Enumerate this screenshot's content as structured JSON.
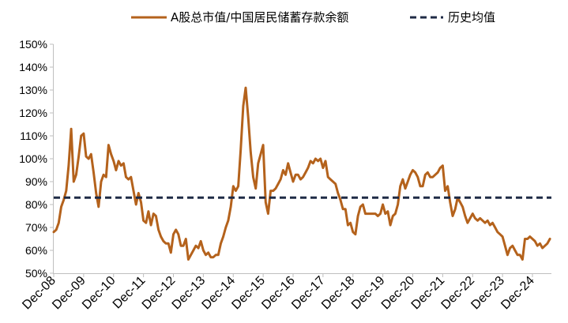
{
  "chart_data": {
    "type": "line",
    "legend": "top",
    "grid": false,
    "ylim": [
      50,
      150
    ],
    "yticks": [
      {
        "value": 50,
        "label": "50%"
      },
      {
        "value": 60,
        "label": "60%"
      },
      {
        "value": 70,
        "label": "70%"
      },
      {
        "value": 80,
        "label": "80%"
      },
      {
        "value": 90,
        "label": "90%"
      },
      {
        "value": 100,
        "label": "100%"
      },
      {
        "value": 110,
        "label": "110%"
      },
      {
        "value": 120,
        "label": "120%"
      },
      {
        "value": 130,
        "label": "130%"
      },
      {
        "value": 140,
        "label": "140%"
      },
      {
        "value": 150,
        "label": "150%"
      }
    ],
    "xticks": [
      {
        "date": "2008-12",
        "label": "Dec-08"
      },
      {
        "date": "2009-12",
        "label": "Dec-09"
      },
      {
        "date": "2010-12",
        "label": "Dec-10"
      },
      {
        "date": "2011-12",
        "label": "Dec-11"
      },
      {
        "date": "2012-12",
        "label": "Dec-12"
      },
      {
        "date": "2013-12",
        "label": "Dec-13"
      },
      {
        "date": "2014-12",
        "label": "Dec-14"
      },
      {
        "date": "2015-12",
        "label": "Dec-15"
      },
      {
        "date": "2016-12",
        "label": "Dec-16"
      },
      {
        "date": "2017-12",
        "label": "Dec-17"
      },
      {
        "date": "2018-12",
        "label": "Dec-18"
      },
      {
        "date": "2019-12",
        "label": "Dec-19"
      },
      {
        "date": "2020-12",
        "label": "Dec-20"
      },
      {
        "date": "2021-12",
        "label": "Dec-21"
      },
      {
        "date": "2022-12",
        "label": "Dec-22"
      },
      {
        "date": "2023-12",
        "label": "Dec-23"
      },
      {
        "date": "2024-12",
        "label": "Dec-24"
      }
    ],
    "x": [
      "2008-12",
      "2009-01",
      "2009-02",
      "2009-03",
      "2009-04",
      "2009-05",
      "2009-06",
      "2009-07",
      "2009-08",
      "2009-09",
      "2009-10",
      "2009-11",
      "2009-12",
      "2010-01",
      "2010-02",
      "2010-03",
      "2010-04",
      "2010-05",
      "2010-06",
      "2010-07",
      "2010-08",
      "2010-09",
      "2010-10",
      "2010-11",
      "2010-12",
      "2011-01",
      "2011-02",
      "2011-03",
      "2011-04",
      "2011-05",
      "2011-06",
      "2011-07",
      "2011-08",
      "2011-09",
      "2011-10",
      "2011-11",
      "2011-12",
      "2012-01",
      "2012-02",
      "2012-03",
      "2012-04",
      "2012-05",
      "2012-06",
      "2012-07",
      "2012-08",
      "2012-09",
      "2012-10",
      "2012-11",
      "2012-12",
      "2013-01",
      "2013-02",
      "2013-03",
      "2013-04",
      "2013-05",
      "2013-06",
      "2013-07",
      "2013-08",
      "2013-09",
      "2013-10",
      "2013-11",
      "2013-12",
      "2014-01",
      "2014-02",
      "2014-03",
      "2014-04",
      "2014-05",
      "2014-06",
      "2014-07",
      "2014-08",
      "2014-09",
      "2014-10",
      "2014-11",
      "2014-12",
      "2015-01",
      "2015-02",
      "2015-03",
      "2015-04",
      "2015-05",
      "2015-06",
      "2015-07",
      "2015-08",
      "2015-09",
      "2015-10",
      "2015-11",
      "2015-12",
      "2016-01",
      "2016-02",
      "2016-03",
      "2016-04",
      "2016-05",
      "2016-06",
      "2016-07",
      "2016-08",
      "2016-09",
      "2016-10",
      "2016-11",
      "2016-12",
      "2017-01",
      "2017-02",
      "2017-03",
      "2017-04",
      "2017-05",
      "2017-06",
      "2017-07",
      "2017-08",
      "2017-09",
      "2017-10",
      "2017-11",
      "2017-12",
      "2018-01",
      "2018-02",
      "2018-03",
      "2018-04",
      "2018-05",
      "2018-06",
      "2018-07",
      "2018-08",
      "2018-09",
      "2018-10",
      "2018-11",
      "2018-12",
      "2019-01",
      "2019-02",
      "2019-03",
      "2019-04",
      "2019-05",
      "2019-06",
      "2019-07",
      "2019-08",
      "2019-09",
      "2019-10",
      "2019-11",
      "2019-12",
      "2020-01",
      "2020-02",
      "2020-03",
      "2020-04",
      "2020-05",
      "2020-06",
      "2020-07",
      "2020-08",
      "2020-09",
      "2020-10",
      "2020-11",
      "2020-12",
      "2021-01",
      "2021-02",
      "2021-03",
      "2021-04",
      "2021-05",
      "2021-06",
      "2021-07",
      "2021-08",
      "2021-09",
      "2021-10",
      "2021-11",
      "2021-12",
      "2022-01",
      "2022-02",
      "2022-03",
      "2022-04",
      "2022-05",
      "2022-06",
      "2022-07",
      "2022-08",
      "2022-09",
      "2022-10",
      "2022-11",
      "2022-12",
      "2023-01",
      "2023-02",
      "2023-03",
      "2023-04",
      "2023-05",
      "2023-06",
      "2023-07",
      "2023-08",
      "2023-09",
      "2023-10",
      "2023-11",
      "2023-12",
      "2024-01",
      "2024-02",
      "2024-03",
      "2024-04",
      "2024-05",
      "2024-06",
      "2024-07",
      "2024-08",
      "2024-09",
      "2024-10",
      "2024-11",
      "2024-12",
      "2025-01",
      "2025-02",
      "2025-03",
      "2025-04",
      "2025-05",
      "2025-06",
      "2025-07"
    ],
    "series": [
      {
        "name": "A股总市值/中国居民储蓄存款余额",
        "color": "#B4621C",
        "style": "solid",
        "values": [
          68,
          69,
          72,
          79,
          82,
          86,
          97,
          113,
          90,
          93,
          101,
          110,
          111,
          101,
          100,
          102,
          94,
          85,
          79,
          90,
          93,
          92,
          106,
          102,
          99,
          95,
          99,
          97,
          98,
          92,
          91,
          92,
          86,
          80,
          85,
          81,
          73,
          72,
          77,
          71,
          76,
          75,
          69,
          66,
          64,
          63,
          63,
          59,
          67,
          69,
          67,
          62,
          62,
          65,
          56,
          58,
          60,
          62,
          61,
          64,
          60,
          58,
          59,
          57,
          57,
          58,
          58,
          63,
          66,
          70,
          73,
          79,
          88,
          86,
          88,
          104,
          123,
          131,
          118,
          103,
          92,
          87,
          98,
          102,
          106,
          81,
          76,
          86,
          86,
          87,
          89,
          91,
          95,
          93,
          98,
          94,
          90,
          93,
          93,
          91,
          92,
          94,
          96,
          99,
          98,
          100,
          99,
          100,
          96,
          99,
          92,
          91,
          90,
          89,
          85,
          82,
          78,
          78,
          71,
          72,
          68,
          67,
          75,
          79,
          80,
          76,
          76,
          76,
          76,
          76,
          75,
          76,
          80,
          76,
          77,
          71,
          75,
          76,
          80,
          88,
          91,
          87,
          90,
          93,
          95,
          94,
          92,
          88,
          88,
          93,
          94,
          92,
          92,
          93,
          94,
          96,
          97,
          86,
          88,
          81,
          75,
          78,
          83,
          81,
          79,
          75,
          72,
          74,
          76,
          74,
          73,
          74,
          73,
          72,
          73,
          71,
          72,
          70,
          68,
          67,
          66,
          62,
          58,
          61,
          62,
          60,
          58,
          58,
          56,
          65,
          65,
          66,
          65,
          64,
          62,
          63,
          61,
          62,
          63,
          65
        ]
      },
      {
        "name": "历史均值",
        "color": "#1F2B46",
        "style": "dashed",
        "value": 83
      }
    ]
  }
}
